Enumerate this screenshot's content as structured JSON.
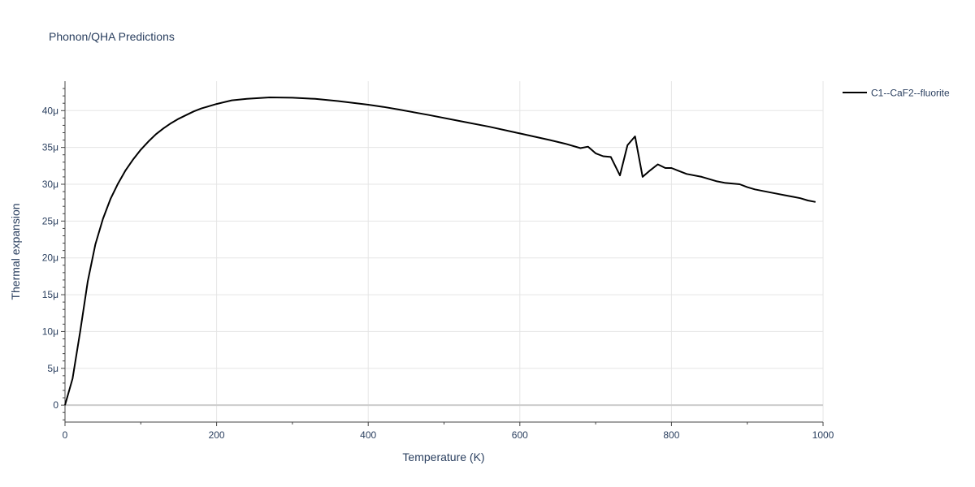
{
  "chart_data": {
    "type": "line",
    "title": "Phonon/QHA Predictions",
    "xlabel": "Temperature (K)",
    "ylabel": "Thermal expansion",
    "xlim": [
      0,
      1000
    ],
    "ylim": [
      -2.3e-06,
      4.4e-05
    ],
    "grid": true,
    "legend_position": "top-right, outside plot",
    "x_ticks": [
      0,
      200,
      400,
      600,
      800,
      1000
    ],
    "x_tick_labels": [
      "0",
      "200",
      "400",
      "600",
      "800",
      "1000"
    ],
    "y_ticks": [
      0,
      5e-06,
      1e-05,
      1.5e-05,
      2e-05,
      2.5e-05,
      3e-05,
      3.5e-05,
      4e-05
    ],
    "y_tick_labels": [
      "0",
      "5μ",
      "10μ",
      "15μ",
      "20μ",
      "25μ",
      "30μ",
      "35μ",
      "40μ"
    ],
    "series": [
      {
        "name": "C1--CaF2--fluorite",
        "color": "#000000",
        "x": [
          0,
          10,
          20,
          30,
          40,
          50,
          60,
          70,
          80,
          90,
          100,
          110,
          120,
          130,
          140,
          150,
          160,
          170,
          180,
          190,
          200,
          220,
          240,
          270,
          300,
          330,
          360,
          400,
          420,
          440,
          480,
          520,
          560,
          600,
          640,
          660,
          680,
          690,
          700,
          710,
          720,
          732,
          742,
          752,
          762,
          772,
          782,
          792,
          800,
          810,
          820,
          840,
          860,
          870,
          890,
          900,
          910,
          920,
          940,
          950,
          960,
          970,
          980,
          990
        ],
        "y": [
          0,
          3.6e-06,
          1e-05,
          1.68e-05,
          2.18e-05,
          2.53e-05,
          2.8e-05,
          3.01e-05,
          3.19e-05,
          3.34e-05,
          3.47e-05,
          3.58e-05,
          3.68e-05,
          3.76e-05,
          3.83e-05,
          3.89e-05,
          3.94e-05,
          3.99e-05,
          4.03e-05,
          4.06e-05,
          4.09e-05,
          4.14e-05,
          4.16e-05,
          4.18e-05,
          4.175e-05,
          4.16e-05,
          4.13e-05,
          4.08e-05,
          4.05e-05,
          4.015e-05,
          3.94e-05,
          3.86e-05,
          3.78e-05,
          3.69e-05,
          3.6e-05,
          3.55e-05,
          3.49e-05,
          3.51e-05,
          3.42e-05,
          3.38e-05,
          3.37e-05,
          3.12e-05,
          3.53e-05,
          3.65e-05,
          3.1e-05,
          3.19e-05,
          3.27e-05,
          3.22e-05,
          3.22e-05,
          3.18e-05,
          3.14e-05,
          3.1e-05,
          3.04e-05,
          3.02e-05,
          3e-05,
          2.96e-05,
          2.93e-05,
          2.91e-05,
          2.87e-05,
          2.85e-05,
          2.83e-05,
          2.81e-05,
          2.78e-05,
          2.76e-05
        ]
      }
    ]
  }
}
